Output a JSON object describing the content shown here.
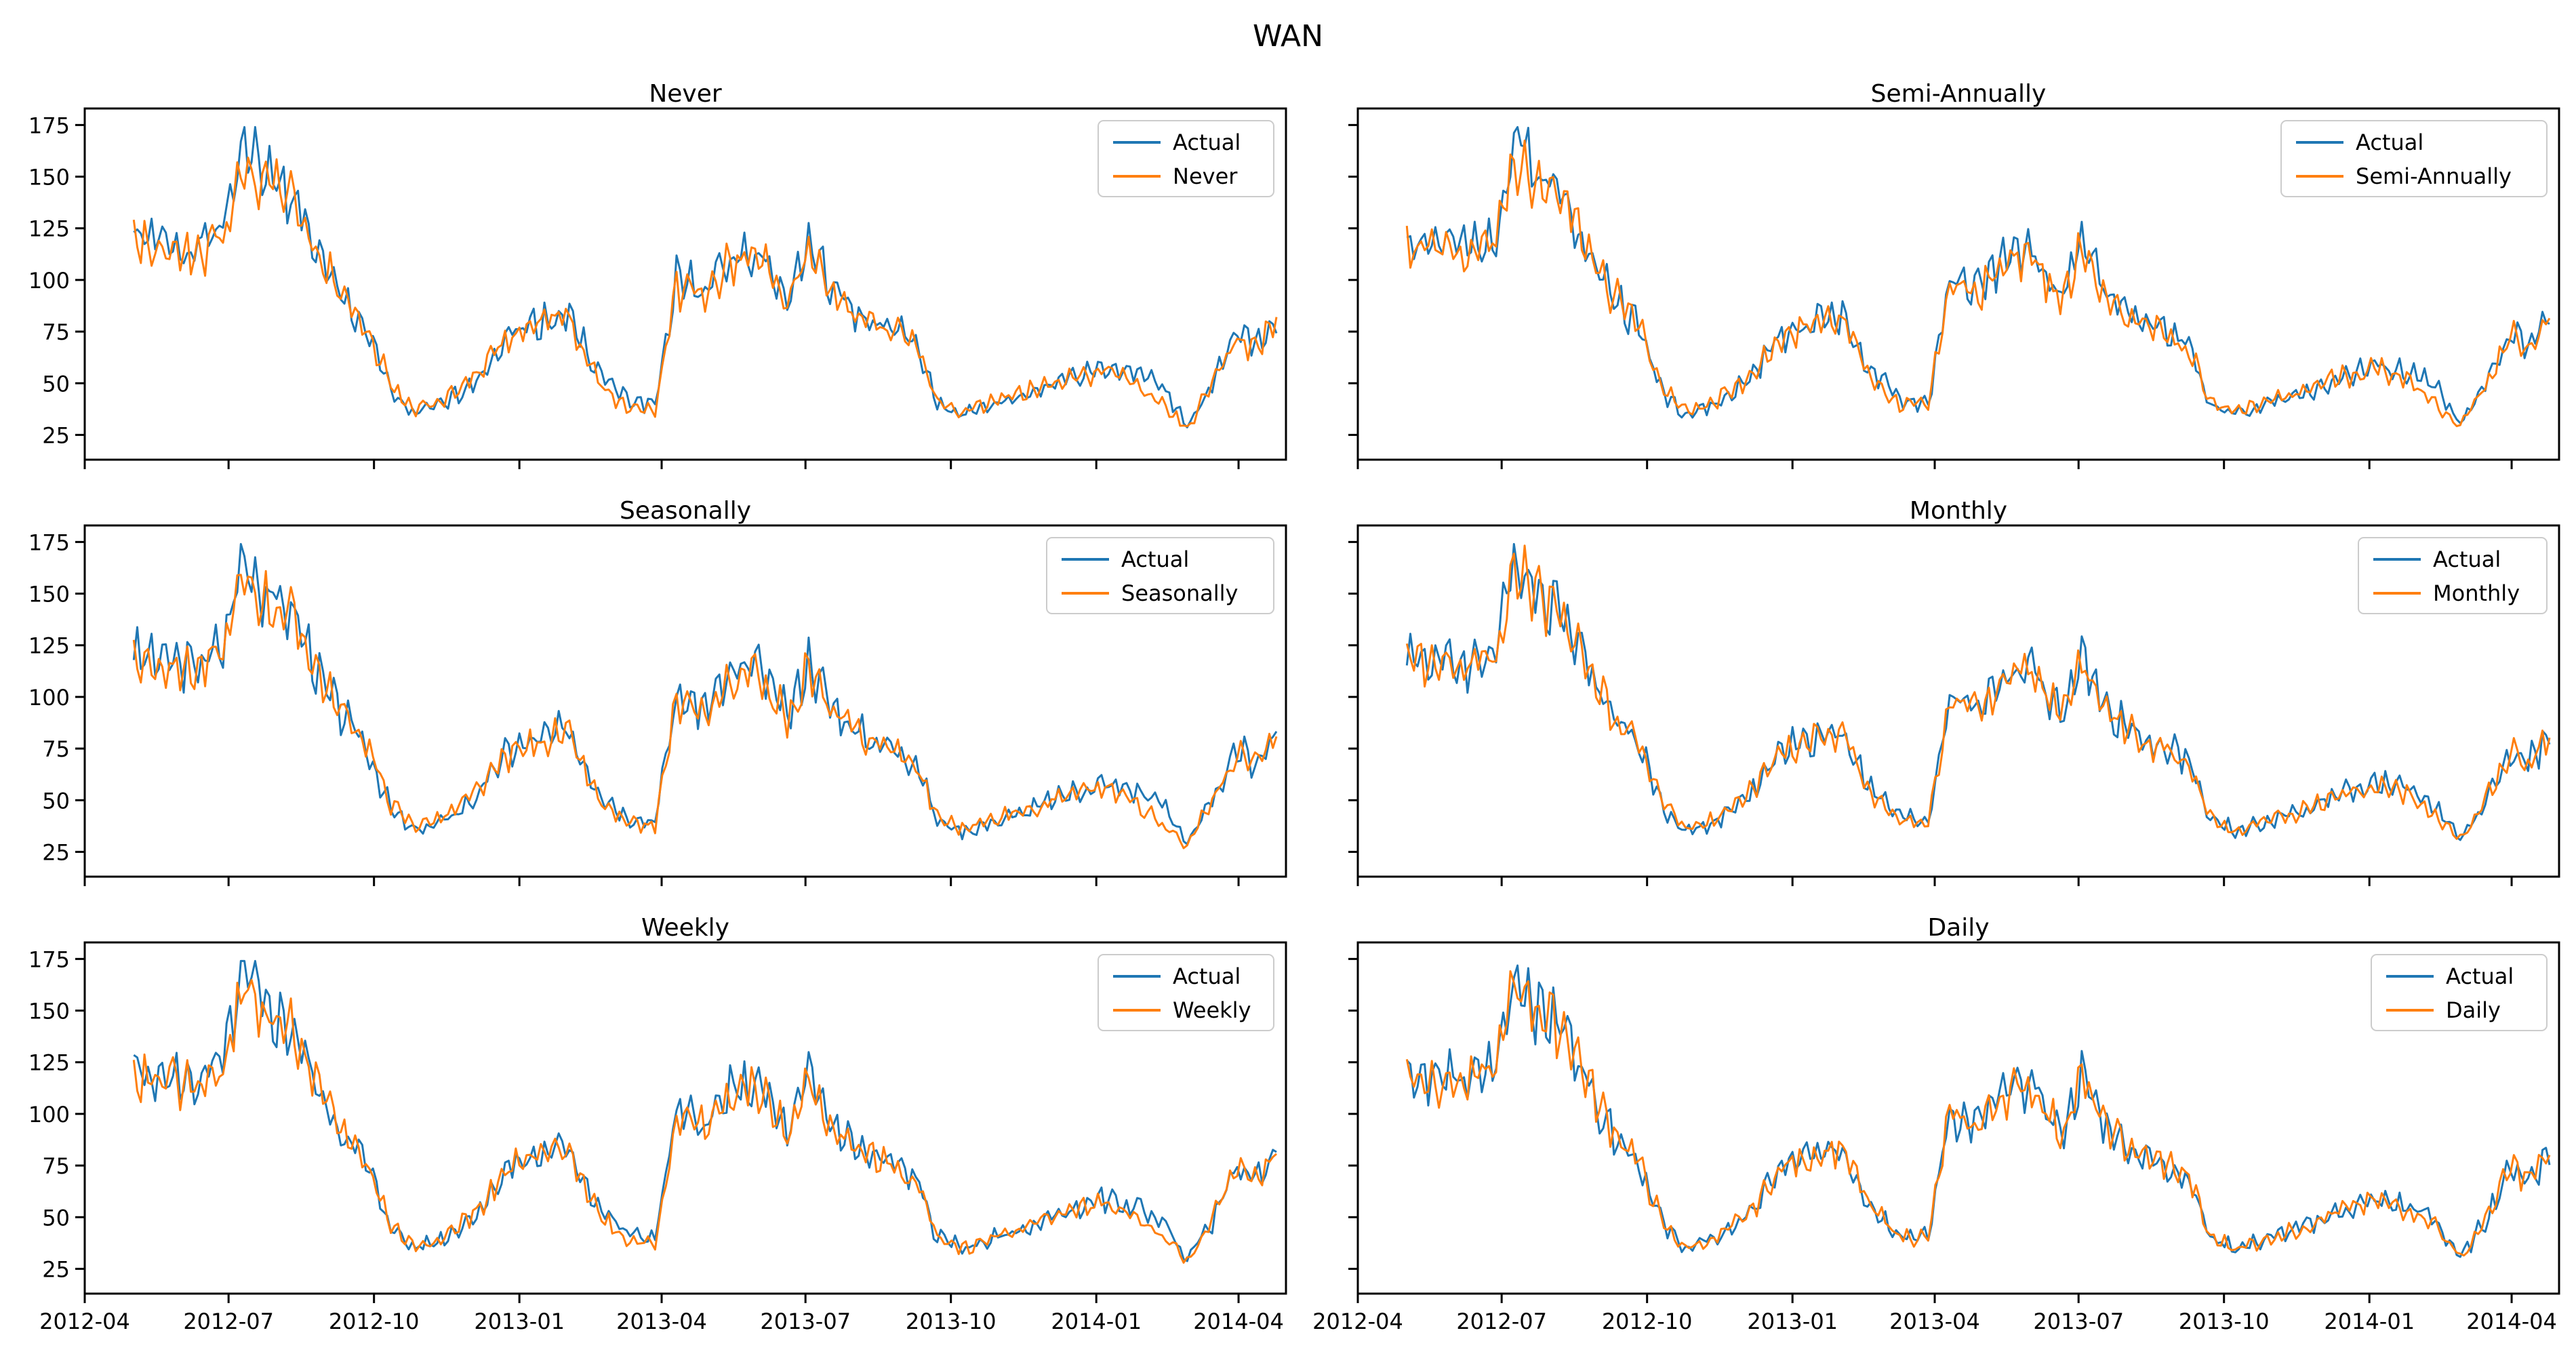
{
  "figure": {
    "title": "WAN"
  },
  "colors": {
    "actual": "#1f77b4",
    "forecast": "#ff7f0e"
  },
  "x_ticks": [
    "2012-04",
    "2012-07",
    "2012-10",
    "2013-01",
    "2013-04",
    "2013-07",
    "2013-10",
    "2014-01",
    "2014-04"
  ],
  "y_ticks": [
    25,
    50,
    75,
    100,
    125,
    150,
    175
  ],
  "chart_data": [
    {
      "type": "line",
      "title": "Never",
      "legend": [
        "Actual",
        "Never"
      ],
      "legend_position": "top-right",
      "seed": 1,
      "x_range": [
        "2012-04-01",
        "2014-05-01"
      ],
      "y_range": [
        13,
        183
      ],
      "series": [
        {
          "name": "Actual",
          "color": "#1f77b4"
        },
        {
          "name": "Never",
          "color": "#ff7f0e"
        }
      ],
      "x_dates": [
        "2012-05-02",
        "2012-05-20",
        "2012-06-10",
        "2012-06-28",
        "2012-07-10",
        "2012-07-25",
        "2012-08-12",
        "2012-08-30",
        "2012-09-12",
        "2012-09-25",
        "2012-10-12",
        "2012-10-26",
        "2012-11-15",
        "2012-12-05",
        "2012-12-25",
        "2013-01-15",
        "2013-02-01",
        "2013-02-20",
        "2013-03-10",
        "2013-03-28",
        "2013-04-10",
        "2013-04-28",
        "2013-05-15",
        "2013-06-01",
        "2013-06-20",
        "2013-07-03",
        "2013-07-18",
        "2013-08-08",
        "2013-08-28",
        "2013-09-10",
        "2013-09-22",
        "2013-10-10",
        "2013-10-30",
        "2013-11-20",
        "2013-12-10",
        "2014-01-05",
        "2014-01-25",
        "2014-02-10",
        "2014-02-28",
        "2014-03-15",
        "2014-04-01",
        "2014-04-12",
        "2014-04-25"
      ],
      "actual_values": [
        120,
        118,
        115,
        125,
        170,
        150,
        140,
        105,
        90,
        78,
        45,
        35,
        40,
        52,
        74,
        80,
        84,
        55,
        42,
        40,
        100,
        95,
        110,
        115,
        90,
        118,
        95,
        80,
        75,
        68,
        40,
        35,
        40,
        45,
        52,
        58,
        55,
        50,
        30,
        48,
        75,
        68,
        82
      ],
      "forecast_values": [
        118,
        116,
        112,
        122,
        155,
        148,
        138,
        108,
        92,
        80,
        48,
        38,
        42,
        54,
        72,
        79,
        82,
        50,
        38,
        38,
        96,
        92,
        108,
        112,
        88,
        114,
        92,
        80,
        74,
        66,
        42,
        36,
        42,
        46,
        52,
        56,
        50,
        40,
        28,
        50,
        72,
        67,
        81
      ]
    },
    {
      "type": "line",
      "title": "Semi-Annually",
      "legend": [
        "Actual",
        "Semi-Annually"
      ],
      "legend_position": "top-right",
      "seed": 2,
      "x_range": [
        "2012-04-01",
        "2014-05-01"
      ],
      "y_range": [
        13,
        183
      ],
      "series": [
        {
          "name": "Actual",
          "color": "#1f77b4"
        },
        {
          "name": "Semi-Annually",
          "color": "#ff7f0e"
        }
      ],
      "x_dates": [
        "2012-05-02",
        "2012-05-20",
        "2012-06-10",
        "2012-06-28",
        "2012-07-10",
        "2012-07-25",
        "2012-08-12",
        "2012-08-30",
        "2012-09-12",
        "2012-09-25",
        "2012-10-12",
        "2012-10-26",
        "2012-11-15",
        "2012-12-05",
        "2012-12-25",
        "2013-01-15",
        "2013-02-01",
        "2013-02-20",
        "2013-03-10",
        "2013-03-28",
        "2013-04-10",
        "2013-04-28",
        "2013-05-15",
        "2013-06-01",
        "2013-06-20",
        "2013-07-03",
        "2013-07-18",
        "2013-08-08",
        "2013-08-28",
        "2013-09-10",
        "2013-09-22",
        "2013-10-10",
        "2013-10-30",
        "2013-11-20",
        "2013-12-10",
        "2014-01-05",
        "2014-01-25",
        "2014-02-10",
        "2014-02-28",
        "2014-03-15",
        "2014-04-01",
        "2014-04-12",
        "2014-04-25"
      ],
      "actual_values": [
        120,
        118,
        115,
        125,
        170,
        150,
        140,
        105,
        90,
        78,
        45,
        35,
        40,
        52,
        74,
        80,
        84,
        55,
        42,
        40,
        100,
        95,
        110,
        115,
        90,
        118,
        95,
        80,
        75,
        68,
        40,
        35,
        40,
        45,
        52,
        58,
        55,
        50,
        30,
        48,
        75,
        68,
        82
      ],
      "forecast_values": [
        116,
        115,
        112,
        120,
        160,
        146,
        136,
        104,
        90,
        79,
        47,
        37,
        42,
        53,
        73,
        80,
        83,
        52,
        40,
        39,
        98,
        93,
        108,
        112,
        88,
        115,
        93,
        79,
        74,
        66,
        41,
        36,
        41,
        46,
        52,
        57,
        52,
        42,
        29,
        49,
        73,
        67,
        81
      ]
    },
    {
      "type": "line",
      "title": "Seasonally",
      "legend": [
        "Actual",
        "Seasonally"
      ],
      "legend_position": "top-right",
      "seed": 3,
      "x_range": [
        "2012-04-01",
        "2014-05-01"
      ],
      "y_range": [
        13,
        183
      ],
      "series": [
        {
          "name": "Actual",
          "color": "#1f77b4"
        },
        {
          "name": "Seasonally",
          "color": "#ff7f0e"
        }
      ],
      "x_dates": [
        "2012-05-02",
        "2012-05-20",
        "2012-06-10",
        "2012-06-28",
        "2012-07-10",
        "2012-07-25",
        "2012-08-12",
        "2012-08-30",
        "2012-09-12",
        "2012-09-25",
        "2012-10-12",
        "2012-10-26",
        "2012-11-15",
        "2012-12-05",
        "2012-12-25",
        "2013-01-15",
        "2013-02-01",
        "2013-02-20",
        "2013-03-10",
        "2013-03-28",
        "2013-04-10",
        "2013-04-28",
        "2013-05-15",
        "2013-06-01",
        "2013-06-20",
        "2013-07-03",
        "2013-07-18",
        "2013-08-08",
        "2013-08-28",
        "2013-09-10",
        "2013-09-22",
        "2013-10-10",
        "2013-10-30",
        "2013-11-20",
        "2013-12-10",
        "2014-01-05",
        "2014-01-25",
        "2014-02-10",
        "2014-02-28",
        "2014-03-15",
        "2014-04-01",
        "2014-04-12",
        "2014-04-25"
      ],
      "actual_values": [
        120,
        118,
        115,
        125,
        170,
        150,
        140,
        105,
        90,
        78,
        45,
        35,
        40,
        52,
        74,
        80,
        84,
        55,
        42,
        40,
        100,
        95,
        110,
        115,
        90,
        118,
        95,
        80,
        75,
        68,
        40,
        35,
        40,
        45,
        52,
        58,
        55,
        50,
        30,
        48,
        75,
        68,
        82
      ],
      "forecast_values": [
        118,
        116,
        113,
        122,
        156,
        147,
        137,
        107,
        91,
        80,
        48,
        38,
        42,
        54,
        72,
        79,
        82,
        50,
        38,
        38,
        97,
        92,
        108,
        112,
        88,
        114,
        92,
        80,
        74,
        66,
        42,
        36,
        42,
        46,
        52,
        56,
        50,
        40,
        28,
        50,
        72,
        67,
        81
      ]
    },
    {
      "type": "line",
      "title": "Monthly",
      "legend": [
        "Actual",
        "Monthly"
      ],
      "legend_position": "top-right",
      "seed": 4,
      "x_range": [
        "2012-04-01",
        "2014-05-01"
      ],
      "y_range": [
        13,
        183
      ],
      "series": [
        {
          "name": "Actual",
          "color": "#1f77b4"
        },
        {
          "name": "Monthly",
          "color": "#ff7f0e"
        }
      ],
      "x_dates": [
        "2012-05-02",
        "2012-05-20",
        "2012-06-10",
        "2012-06-28",
        "2012-07-10",
        "2012-07-25",
        "2012-08-12",
        "2012-08-30",
        "2012-09-12",
        "2012-09-25",
        "2012-10-12",
        "2012-10-26",
        "2012-11-15",
        "2012-12-05",
        "2012-12-25",
        "2013-01-15",
        "2013-02-01",
        "2013-02-20",
        "2013-03-10",
        "2013-03-28",
        "2013-04-10",
        "2013-04-28",
        "2013-05-15",
        "2013-06-01",
        "2013-06-20",
        "2013-07-03",
        "2013-07-18",
        "2013-08-08",
        "2013-08-28",
        "2013-09-10",
        "2013-09-22",
        "2013-10-10",
        "2013-10-30",
        "2013-11-20",
        "2013-12-10",
        "2014-01-05",
        "2014-01-25",
        "2014-02-10",
        "2014-02-28",
        "2014-03-15",
        "2014-04-01",
        "2014-04-12",
        "2014-04-25"
      ],
      "actual_values": [
        120,
        118,
        115,
        125,
        170,
        150,
        140,
        105,
        90,
        78,
        45,
        35,
        40,
        52,
        74,
        80,
        84,
        55,
        42,
        40,
        100,
        95,
        110,
        115,
        90,
        118,
        95,
        80,
        75,
        68,
        40,
        35,
        40,
        45,
        52,
        58,
        55,
        50,
        30,
        48,
        75,
        68,
        82
      ],
      "forecast_values": [
        117,
        116,
        113,
        121,
        162,
        147,
        137,
        105,
        90,
        79,
        47,
        37,
        41,
        53,
        73,
        80,
        83,
        53,
        40,
        39,
        98,
        93,
        108,
        113,
        89,
        116,
        93,
        79,
        74,
        67,
        41,
        35,
        41,
        45,
        52,
        57,
        53,
        44,
        30,
        49,
        74,
        67,
        81
      ]
    },
    {
      "type": "line",
      "title": "Weekly",
      "legend": [
        "Actual",
        "Weekly"
      ],
      "legend_position": "top-right",
      "seed": 5,
      "x_range": [
        "2012-04-01",
        "2014-05-01"
      ],
      "y_range": [
        13,
        183
      ],
      "series": [
        {
          "name": "Actual",
          "color": "#1f77b4"
        },
        {
          "name": "Weekly",
          "color": "#ff7f0e"
        }
      ],
      "x_dates": [
        "2012-05-02",
        "2012-05-20",
        "2012-06-10",
        "2012-06-28",
        "2012-07-10",
        "2012-07-25",
        "2012-08-12",
        "2012-08-30",
        "2012-09-12",
        "2012-09-25",
        "2012-10-12",
        "2012-10-26",
        "2012-11-15",
        "2012-12-05",
        "2012-12-25",
        "2013-01-15",
        "2013-02-01",
        "2013-02-20",
        "2013-03-10",
        "2013-03-28",
        "2013-04-10",
        "2013-04-28",
        "2013-05-15",
        "2013-06-01",
        "2013-06-20",
        "2013-07-03",
        "2013-07-18",
        "2013-08-08",
        "2013-08-28",
        "2013-09-10",
        "2013-09-22",
        "2013-10-10",
        "2013-10-30",
        "2013-11-20",
        "2013-12-10",
        "2014-01-05",
        "2014-01-25",
        "2014-02-10",
        "2014-02-28",
        "2014-03-15",
        "2014-04-01",
        "2014-04-12",
        "2014-04-25"
      ],
      "actual_values": [
        120,
        118,
        115,
        125,
        170,
        150,
        140,
        105,
        90,
        78,
        45,
        35,
        40,
        52,
        74,
        80,
        84,
        55,
        42,
        40,
        100,
        95,
        110,
        115,
        90,
        118,
        95,
        80,
        75,
        68,
        40,
        35,
        40,
        45,
        52,
        58,
        55,
        50,
        30,
        48,
        75,
        68,
        82
      ],
      "forecast_values": [
        118,
        116,
        114,
        123,
        160,
        148,
        138,
        106,
        91,
        79,
        46,
        36,
        41,
        53,
        73,
        80,
        83,
        52,
        39,
        38,
        98,
        93,
        109,
        113,
        89,
        116,
        93,
        80,
        74,
        66,
        41,
        35,
        41,
        46,
        52,
        57,
        51,
        42,
        28,
        50,
        73,
        67,
        82
      ]
    },
    {
      "type": "line",
      "title": "Daily",
      "legend": [
        "Actual",
        "Daily"
      ],
      "legend_position": "top-right",
      "seed": 6,
      "x_range": [
        "2012-04-01",
        "2014-05-01"
      ],
      "y_range": [
        13,
        183
      ],
      "series": [
        {
          "name": "Actual",
          "color": "#1f77b4"
        },
        {
          "name": "Daily",
          "color": "#ff7f0e"
        }
      ],
      "x_dates": [
        "2012-05-02",
        "2012-05-20",
        "2012-06-10",
        "2012-06-28",
        "2012-07-10",
        "2012-07-25",
        "2012-08-12",
        "2012-08-30",
        "2012-09-12",
        "2012-09-25",
        "2012-10-12",
        "2012-10-26",
        "2012-11-15",
        "2012-12-05",
        "2012-12-25",
        "2013-01-15",
        "2013-02-01",
        "2013-02-20",
        "2013-03-10",
        "2013-03-28",
        "2013-04-10",
        "2013-04-28",
        "2013-05-15",
        "2013-06-01",
        "2013-06-20",
        "2013-07-03",
        "2013-07-18",
        "2013-08-08",
        "2013-08-28",
        "2013-09-10",
        "2013-09-22",
        "2013-10-10",
        "2013-10-30",
        "2013-11-20",
        "2013-12-10",
        "2014-01-05",
        "2014-01-25",
        "2014-02-10",
        "2014-02-28",
        "2014-03-15",
        "2014-04-01",
        "2014-04-12",
        "2014-04-25"
      ],
      "actual_values": [
        120,
        118,
        115,
        125,
        170,
        150,
        140,
        105,
        90,
        78,
        45,
        35,
        40,
        52,
        74,
        80,
        84,
        55,
        42,
        40,
        100,
        95,
        110,
        115,
        90,
        118,
        95,
        80,
        75,
        68,
        40,
        35,
        40,
        45,
        52,
        58,
        55,
        50,
        30,
        48,
        75,
        68,
        82
      ],
      "forecast_values": [
        119,
        117,
        114,
        124,
        166,
        149,
        139,
        106,
        90,
        78,
        45,
        35,
        40,
        52,
        74,
        80,
        84,
        54,
        41,
        40,
        99,
        94,
        110,
        114,
        90,
        117,
        94,
        80,
        75,
        68,
        40,
        35,
        40,
        45,
        52,
        58,
        54,
        48,
        30,
        48,
        75,
        68,
        82
      ]
    }
  ]
}
